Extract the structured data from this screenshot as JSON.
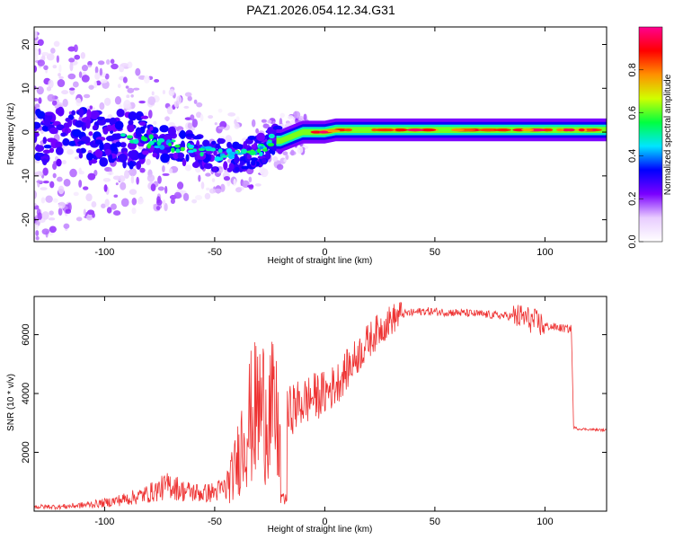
{
  "title": "PAZ1.2026.054.12.34.G31",
  "chart_data": [
    {
      "type": "heatmap",
      "name": "spectrogram",
      "xlabel": "Height of straight line (km)",
      "ylabel": "Frequency (Hz)",
      "xlim": [
        -132,
        128
      ],
      "ylim": [
        -25,
        24
      ],
      "xticks": [
        -100,
        -50,
        0,
        50,
        100
      ],
      "yticks": [
        -20,
        -10,
        0,
        10,
        20
      ],
      "colorbar": {
        "label": "Normalized spectral amplitude",
        "range": [
          0,
          1
        ],
        "ticks": [
          0.0,
          0.2,
          0.4,
          0.6,
          0.8
        ],
        "colormap": [
          "#ffffff",
          "#e8ccff",
          "#7a00ff",
          "#0000ff",
          "#00e5ff",
          "#00ff40",
          "#d0ff00",
          "#ff9000",
          "#ff0000",
          "#ff0090"
        ]
      },
      "ridge": {
        "x": [
          -130,
          -110,
          -90,
          -80,
          -70,
          -60,
          -50,
          -40,
          -30,
          -25,
          -20,
          -15,
          -10,
          -5,
          0,
          5,
          10,
          20,
          30,
          50,
          80,
          100,
          128
        ],
        "freq": [
          -1,
          -1,
          -1.5,
          -2,
          -3,
          -4,
          -5,
          -5.5,
          -4.5,
          -2,
          -2,
          -1,
          0,
          0,
          0,
          0.5,
          0.5,
          0.5,
          0.5,
          0.5,
          0.5,
          0.5,
          0.5
        ]
      }
    },
    {
      "type": "line",
      "name": "snr",
      "xlabel": "Height of straight line (km)",
      "ylabel": "SNR (10 * v/v)",
      "xlim": [
        -132,
        128
      ],
      "ylim": [
        0,
        7300
      ],
      "xticks": [
        -100,
        -50,
        0,
        50,
        100
      ],
      "yticks": [
        2000,
        4000,
        6000
      ],
      "color": "#ee3333",
      "x": [
        -132,
        -120,
        -110,
        -100,
        -90,
        -85,
        -80,
        -75,
        -70,
        -65,
        -60,
        -55,
        -50,
        -45,
        -42,
        -40,
        -38,
        -35,
        -30,
        -25,
        -22,
        -20,
        -18,
        -17,
        -15,
        -12,
        -10,
        -5,
        0,
        5,
        10,
        15,
        20,
        25,
        30,
        35,
        40,
        45,
        50,
        60,
        70,
        80,
        90,
        95,
        100,
        105,
        110,
        112,
        113,
        115,
        120,
        128
      ],
      "values": [
        150,
        150,
        200,
        280,
        420,
        500,
        600,
        750,
        900,
        700,
        650,
        600,
        650,
        800,
        1200,
        1600,
        2300,
        3000,
        3500,
        3500,
        3000,
        2000,
        3000,
        3200,
        3500,
        3600,
        3700,
        3900,
        4000,
        4300,
        4800,
        5300,
        5800,
        6200,
        6500,
        6700,
        6750,
        6800,
        6780,
        6750,
        6700,
        6650,
        6600,
        6450,
        6300,
        6250,
        6200,
        6200,
        2850,
        2800,
        2780,
        2750
      ]
    }
  ]
}
